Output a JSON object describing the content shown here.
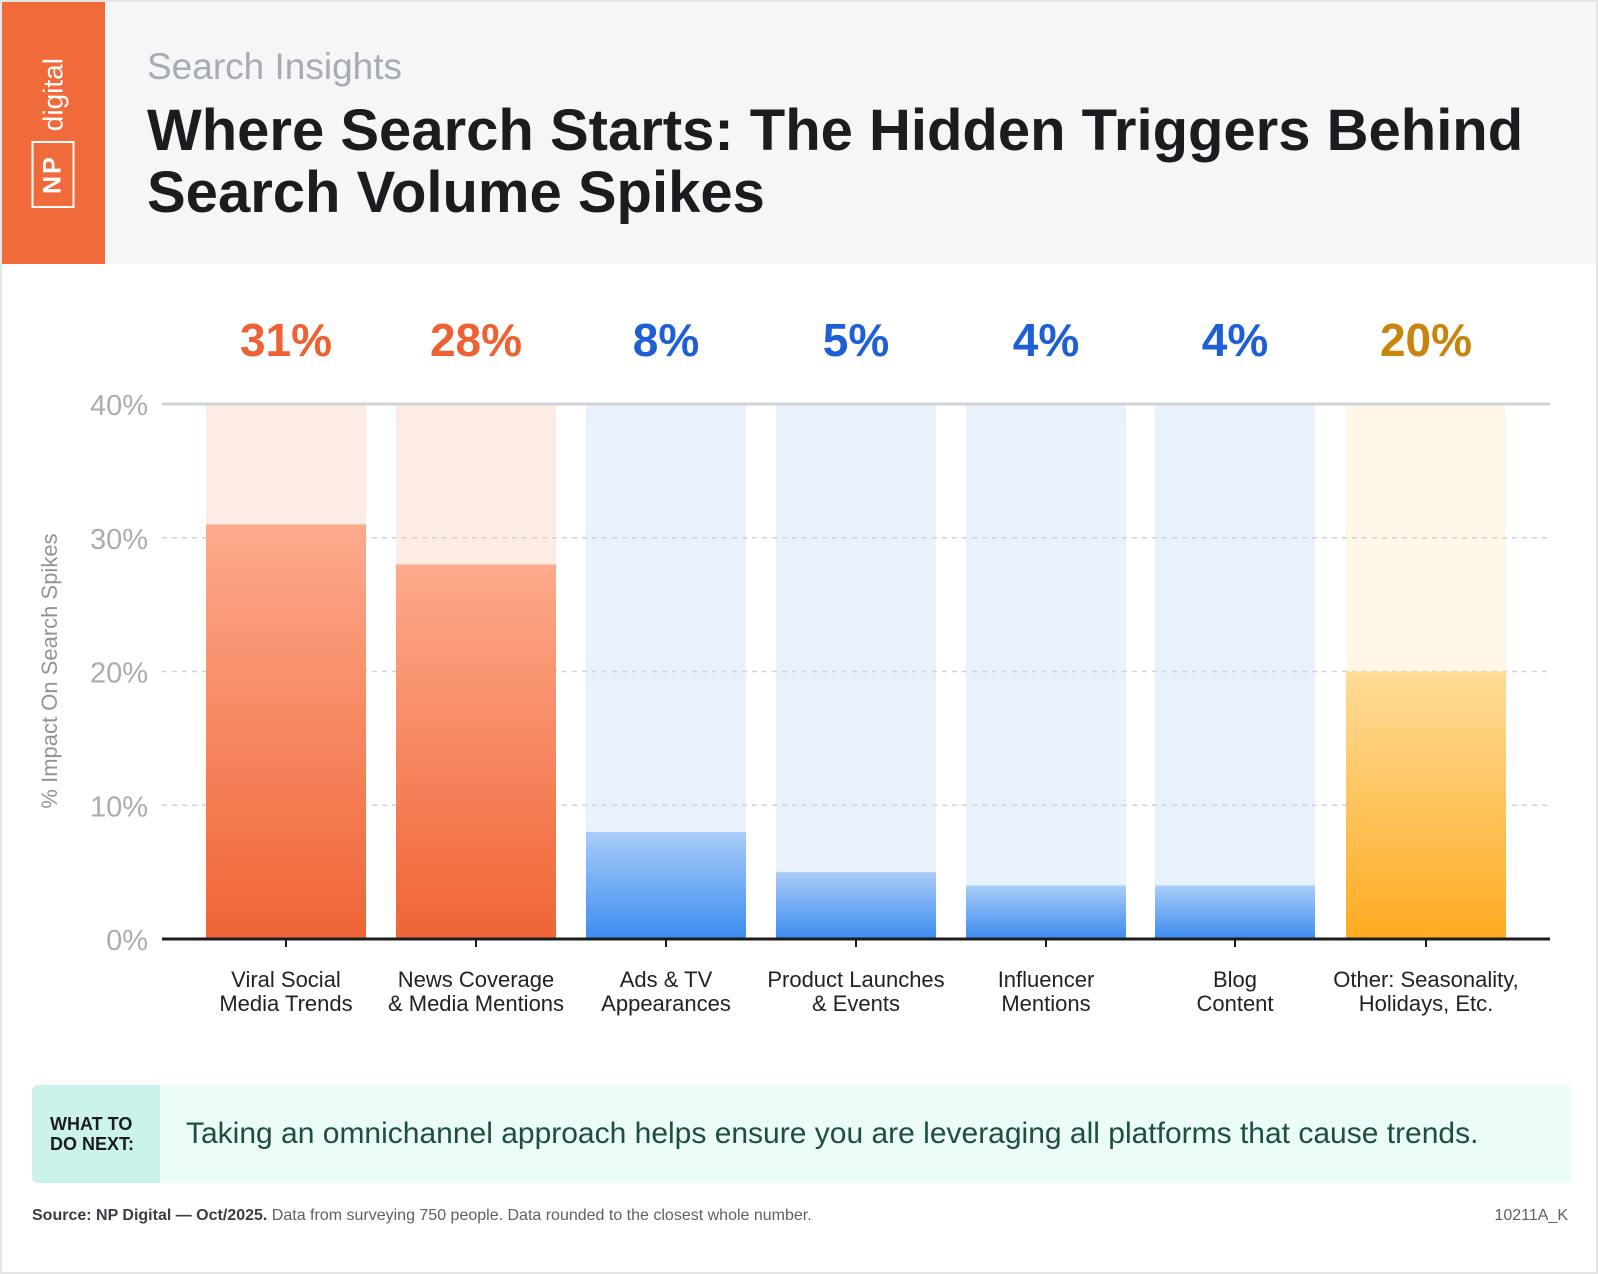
{
  "header": {
    "logo_np": "NP",
    "logo_digital": "digital",
    "eyebrow": "Search Insights",
    "title": "Where Search Starts: The Hidden Triggers Behind Search Volume Spikes"
  },
  "colors": {
    "brand_orange": "#f06a3a",
    "orange_value": "#ef6133",
    "blue_value": "#1f5fd6",
    "gold_value": "#c9840e",
    "orange_bg": "#fdece6",
    "blue_bg": "#e8f1fc",
    "yellow_bg": "#fef6e6",
    "axis": "#1b1c20",
    "grid": "#cfd2d6",
    "tick_label": "#a9adb3"
  },
  "chart_data": {
    "type": "bar",
    "title": "Where Search Starts: The Hidden Triggers Behind Search Volume Spikes",
    "ylabel": "% Impact On Search Spikes",
    "xlabel": "",
    "ylim": [
      0,
      40
    ],
    "yticks": [
      0,
      10,
      20,
      30,
      40
    ],
    "ytick_labels": [
      "0%",
      "10%",
      "20%",
      "30%",
      "40%"
    ],
    "grid": true,
    "categories": [
      "Viral Social Media Trends",
      "News Coverage & Media Mentions",
      "Ads & TV Appearances",
      "Product Launches & Events",
      "Influencer Mentions",
      "Blog Content",
      "Other: Seasonality, Holidays, Etc."
    ],
    "category_lines": [
      [
        "Viral Social",
        "Media Trends"
      ],
      [
        "News Coverage",
        "& Media Mentions"
      ],
      [
        "Ads & TV",
        "Appearances"
      ],
      [
        "Product Launches",
        "& Events"
      ],
      [
        "Influencer",
        "Mentions"
      ],
      [
        "Blog",
        "Content"
      ],
      [
        "Other: Seasonality,",
        "Holidays, Etc."
      ]
    ],
    "values": [
      31,
      28,
      8,
      5,
      4,
      4,
      20
    ],
    "value_labels": [
      "31%",
      "28%",
      "8%",
      "5%",
      "4%",
      "4%",
      "20%"
    ],
    "color_groups": [
      "orange",
      "orange",
      "blue",
      "blue",
      "blue",
      "blue",
      "yellow"
    ]
  },
  "next": {
    "tag": "WHAT TO DO NEXT:",
    "text": "Taking an omnichannel approach helps ensure you are leveraging all platforms that cause trends."
  },
  "footer": {
    "source_bold": "Source: NP Digital — Oct/2025.",
    "source_rest": "Data from surveying 750 people. Data rounded to the closest whole number.",
    "code": "10211A_K"
  }
}
